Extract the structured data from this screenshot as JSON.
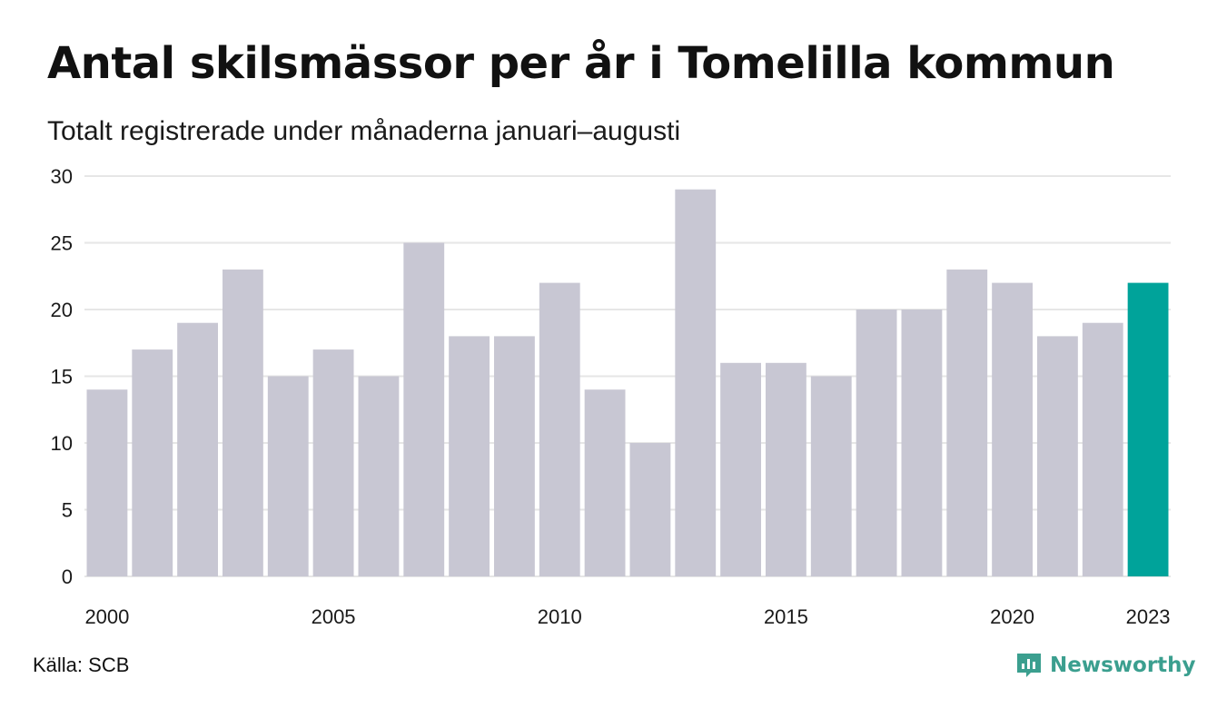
{
  "title": "Antal skilsmässor per år i Tomelilla kommun",
  "subtitle": "Totalt registrerade under månaderna januari–augusti",
  "source": "Källa: SCB",
  "brand": {
    "name": "Newsworthy",
    "icon": "newsworthy-logo-icon",
    "color": "#3b9f8f"
  },
  "chart_data": {
    "type": "bar",
    "categories": [
      "2000",
      "2001",
      "2002",
      "2003",
      "2004",
      "2005",
      "2006",
      "2007",
      "2008",
      "2009",
      "2010",
      "2011",
      "2012",
      "2013",
      "2014",
      "2015",
      "2016",
      "2017",
      "2018",
      "2019",
      "2020",
      "2021",
      "2022",
      "2023"
    ],
    "values": [
      14,
      17,
      19,
      23,
      15,
      17,
      15,
      25,
      18,
      18,
      22,
      14,
      10,
      29,
      16,
      16,
      15,
      20,
      20,
      23,
      22,
      18,
      19,
      22
    ],
    "x_tick_labels": [
      "2000",
      "2005",
      "2010",
      "2015",
      "2020",
      "2023"
    ],
    "y_ticks": [
      0,
      5,
      10,
      15,
      20,
      25,
      30
    ],
    "ylim": [
      0,
      30
    ],
    "grid": true,
    "highlight_category": "2023",
    "colors": {
      "bar": "#c8c7d3",
      "highlight": "#00a39a",
      "grid": "#e6e6e6"
    }
  }
}
